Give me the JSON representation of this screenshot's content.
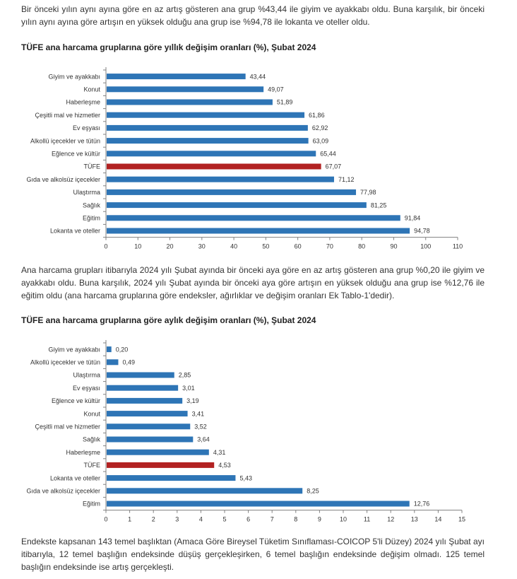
{
  "paragraphs": {
    "p1": "Bir önceki yılın aynı ayına göre en az artış gösteren ana grup %43,44 ile giyim ve ayakkabı oldu. Buna karşılık, bir önceki yılın aynı ayına göre artışın en yüksek olduğu ana grup ise %94,78 ile lokanta ve oteller oldu.",
    "p2": "Ana harcama grupları itibarıyla 2024 yılı Şubat ayında bir önceki aya göre en az artış gösteren ana grup %0,20 ile giyim ve ayakkabı oldu. Buna karşılık, 2024 yılı Şubat ayında bir önceki aya göre artışın en yüksek olduğu ana grup ise %12,76 ile eğitim oldu (ana harcama gruplarına göre endeksler, ağırlıklar ve değişim oranları Ek Tablo-1'dedir).",
    "p3": "Endekste kapsanan 143 temel başlıktan (Amaca Göre Bireysel Tüketim Sınıflaması-COICOP 5'li Düzey) 2024 yılı Şubat ayı itibarıyla, 12 temel başlığın endeksinde düşüş gerçekleşirken, 6 temel başlığın endeksinde değişim olmadı. 125 temel başlığın endeksinde ise artış gerçekleşti."
  },
  "colors": {
    "bar": "#2e75b6",
    "highlight": "#b22222",
    "axis": "#808080",
    "text": "#333333"
  },
  "chart_data": [
    {
      "type": "bar",
      "orientation": "horizontal",
      "title": "TÜFE ana harcama gruplarına göre yıllık değişim oranları (%), Şubat 2024",
      "categories": [
        "Giyim ve ayakkabı",
        "Konut",
        "Haberleşme",
        "Çeşitli mal ve hizmetler",
        "Ev eşyası",
        "Alkollü içecekler ve tütün",
        "Eğlence ve kültür",
        "TÜFE",
        "Gıda ve alkolsüz içecekler",
        "Ulaştırma",
        "Sağlık",
        "Eğitim",
        "Lokanta ve oteller"
      ],
      "values": [
        43.44,
        49.07,
        51.89,
        61.86,
        62.92,
        63.09,
        65.44,
        67.07,
        71.12,
        77.98,
        81.25,
        91.84,
        94.78
      ],
      "value_labels": [
        "43,44",
        "49,07",
        "51,89",
        "61,86",
        "62,92",
        "63,09",
        "65,44",
        "67,07",
        "71,12",
        "77,98",
        "81,25",
        "91,84",
        "94,78"
      ],
      "highlight": "TÜFE",
      "xlim": [
        0,
        110
      ],
      "xticks": [
        0,
        10,
        20,
        30,
        40,
        50,
        60,
        70,
        80,
        90,
        100,
        110
      ],
      "xlabel": "",
      "ylabel": ""
    },
    {
      "type": "bar",
      "orientation": "horizontal",
      "title": "TÜFE ana harcama gruplarına göre aylık değişim oranları (%), Şubat 2024",
      "categories": [
        "Giyim ve ayakkabı",
        "Alkollü içecekler ve tütün",
        "Ulaştırma",
        "Ev eşyası",
        "Eğlence ve kültür",
        "Konut",
        "Çeşitli mal ve hizmetler",
        "Sağlık",
        "Haberleşme",
        "TÜFE",
        "Lokanta ve oteller",
        "Gıda ve alkolsüz içecekler",
        "Eğitim"
      ],
      "values": [
        0.2,
        0.49,
        2.85,
        3.01,
        3.19,
        3.41,
        3.52,
        3.64,
        4.31,
        4.53,
        5.43,
        8.25,
        12.76
      ],
      "value_labels": [
        "0,20",
        "0,49",
        "2,85",
        "3,01",
        "3,19",
        "3,41",
        "3,52",
        "3,64",
        "4,31",
        "4,53",
        "5,43",
        "8,25",
        "12,76"
      ],
      "highlight": "TÜFE",
      "xlim": [
        0,
        15
      ],
      "xticks": [
        0,
        1,
        2,
        3,
        4,
        5,
        6,
        7,
        8,
        9,
        10,
        11,
        12,
        13,
        14,
        15
      ],
      "xlabel": "",
      "ylabel": ""
    }
  ]
}
